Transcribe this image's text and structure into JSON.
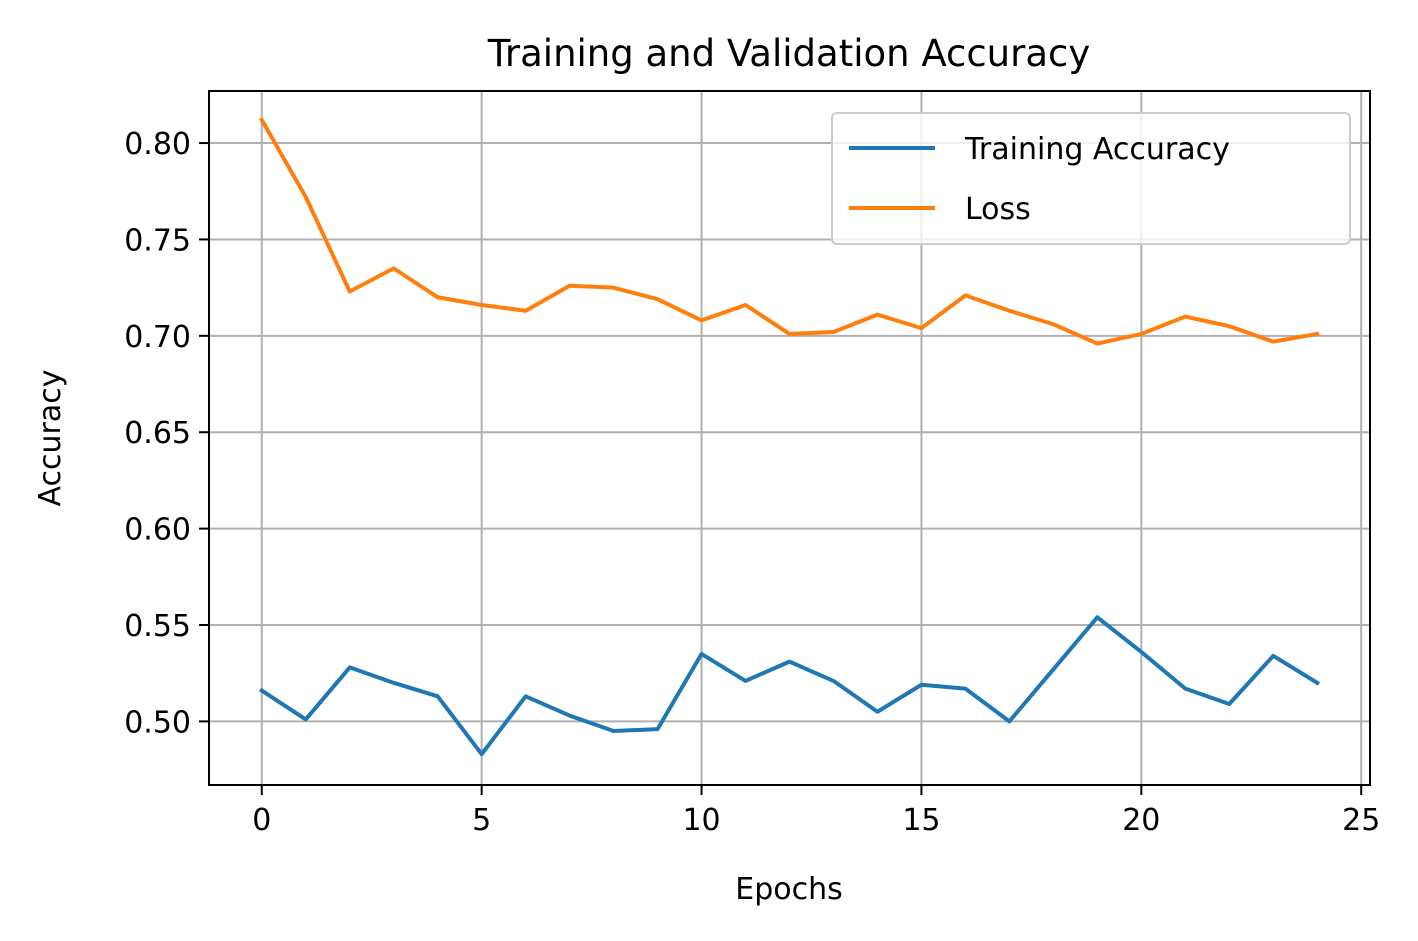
{
  "chart_data": {
    "type": "line",
    "title": "Training and Validation Accuracy",
    "xlabel": "Epochs",
    "ylabel": "Accuracy",
    "xlim": [
      -1.2,
      25.2
    ],
    "ylim": [
      0.467,
      0.827
    ],
    "xticks": [
      0,
      5,
      10,
      15,
      20,
      25
    ],
    "xtick_labels": [
      "0",
      "5",
      "10",
      "15",
      "20",
      "25"
    ],
    "yticks": [
      0.5,
      0.55,
      0.6,
      0.65,
      0.7,
      0.75,
      0.8
    ],
    "ytick_labels": [
      "0.50",
      "0.55",
      "0.60",
      "0.65",
      "0.70",
      "0.75",
      "0.80"
    ],
    "grid": true,
    "legend_position": "top-right",
    "x": [
      0,
      1,
      2,
      3,
      4,
      5,
      6,
      7,
      8,
      9,
      10,
      11,
      12,
      13,
      14,
      15,
      16,
      17,
      18,
      19,
      20,
      21,
      22,
      23,
      24
    ],
    "series": [
      {
        "name": "Training Accuracy",
        "color": "#1f77b4",
        "values": [
          0.516,
          0.501,
          0.528,
          0.52,
          0.513,
          0.483,
          0.513,
          0.503,
          0.495,
          0.496,
          0.535,
          0.521,
          0.531,
          0.521,
          0.505,
          0.519,
          0.517,
          0.5,
          0.527,
          0.554,
          0.536,
          0.517,
          0.509,
          0.534,
          0.52
        ]
      },
      {
        "name": "Loss",
        "color": "#ff7f0e",
        "values": [
          0.812,
          0.772,
          0.723,
          0.735,
          0.72,
          0.716,
          0.713,
          0.726,
          0.725,
          0.719,
          0.708,
          0.716,
          0.701,
          0.702,
          0.711,
          0.704,
          0.721,
          0.713,
          0.706,
          0.696,
          0.701,
          0.71,
          0.705,
          0.697,
          0.701
        ]
      }
    ]
  }
}
